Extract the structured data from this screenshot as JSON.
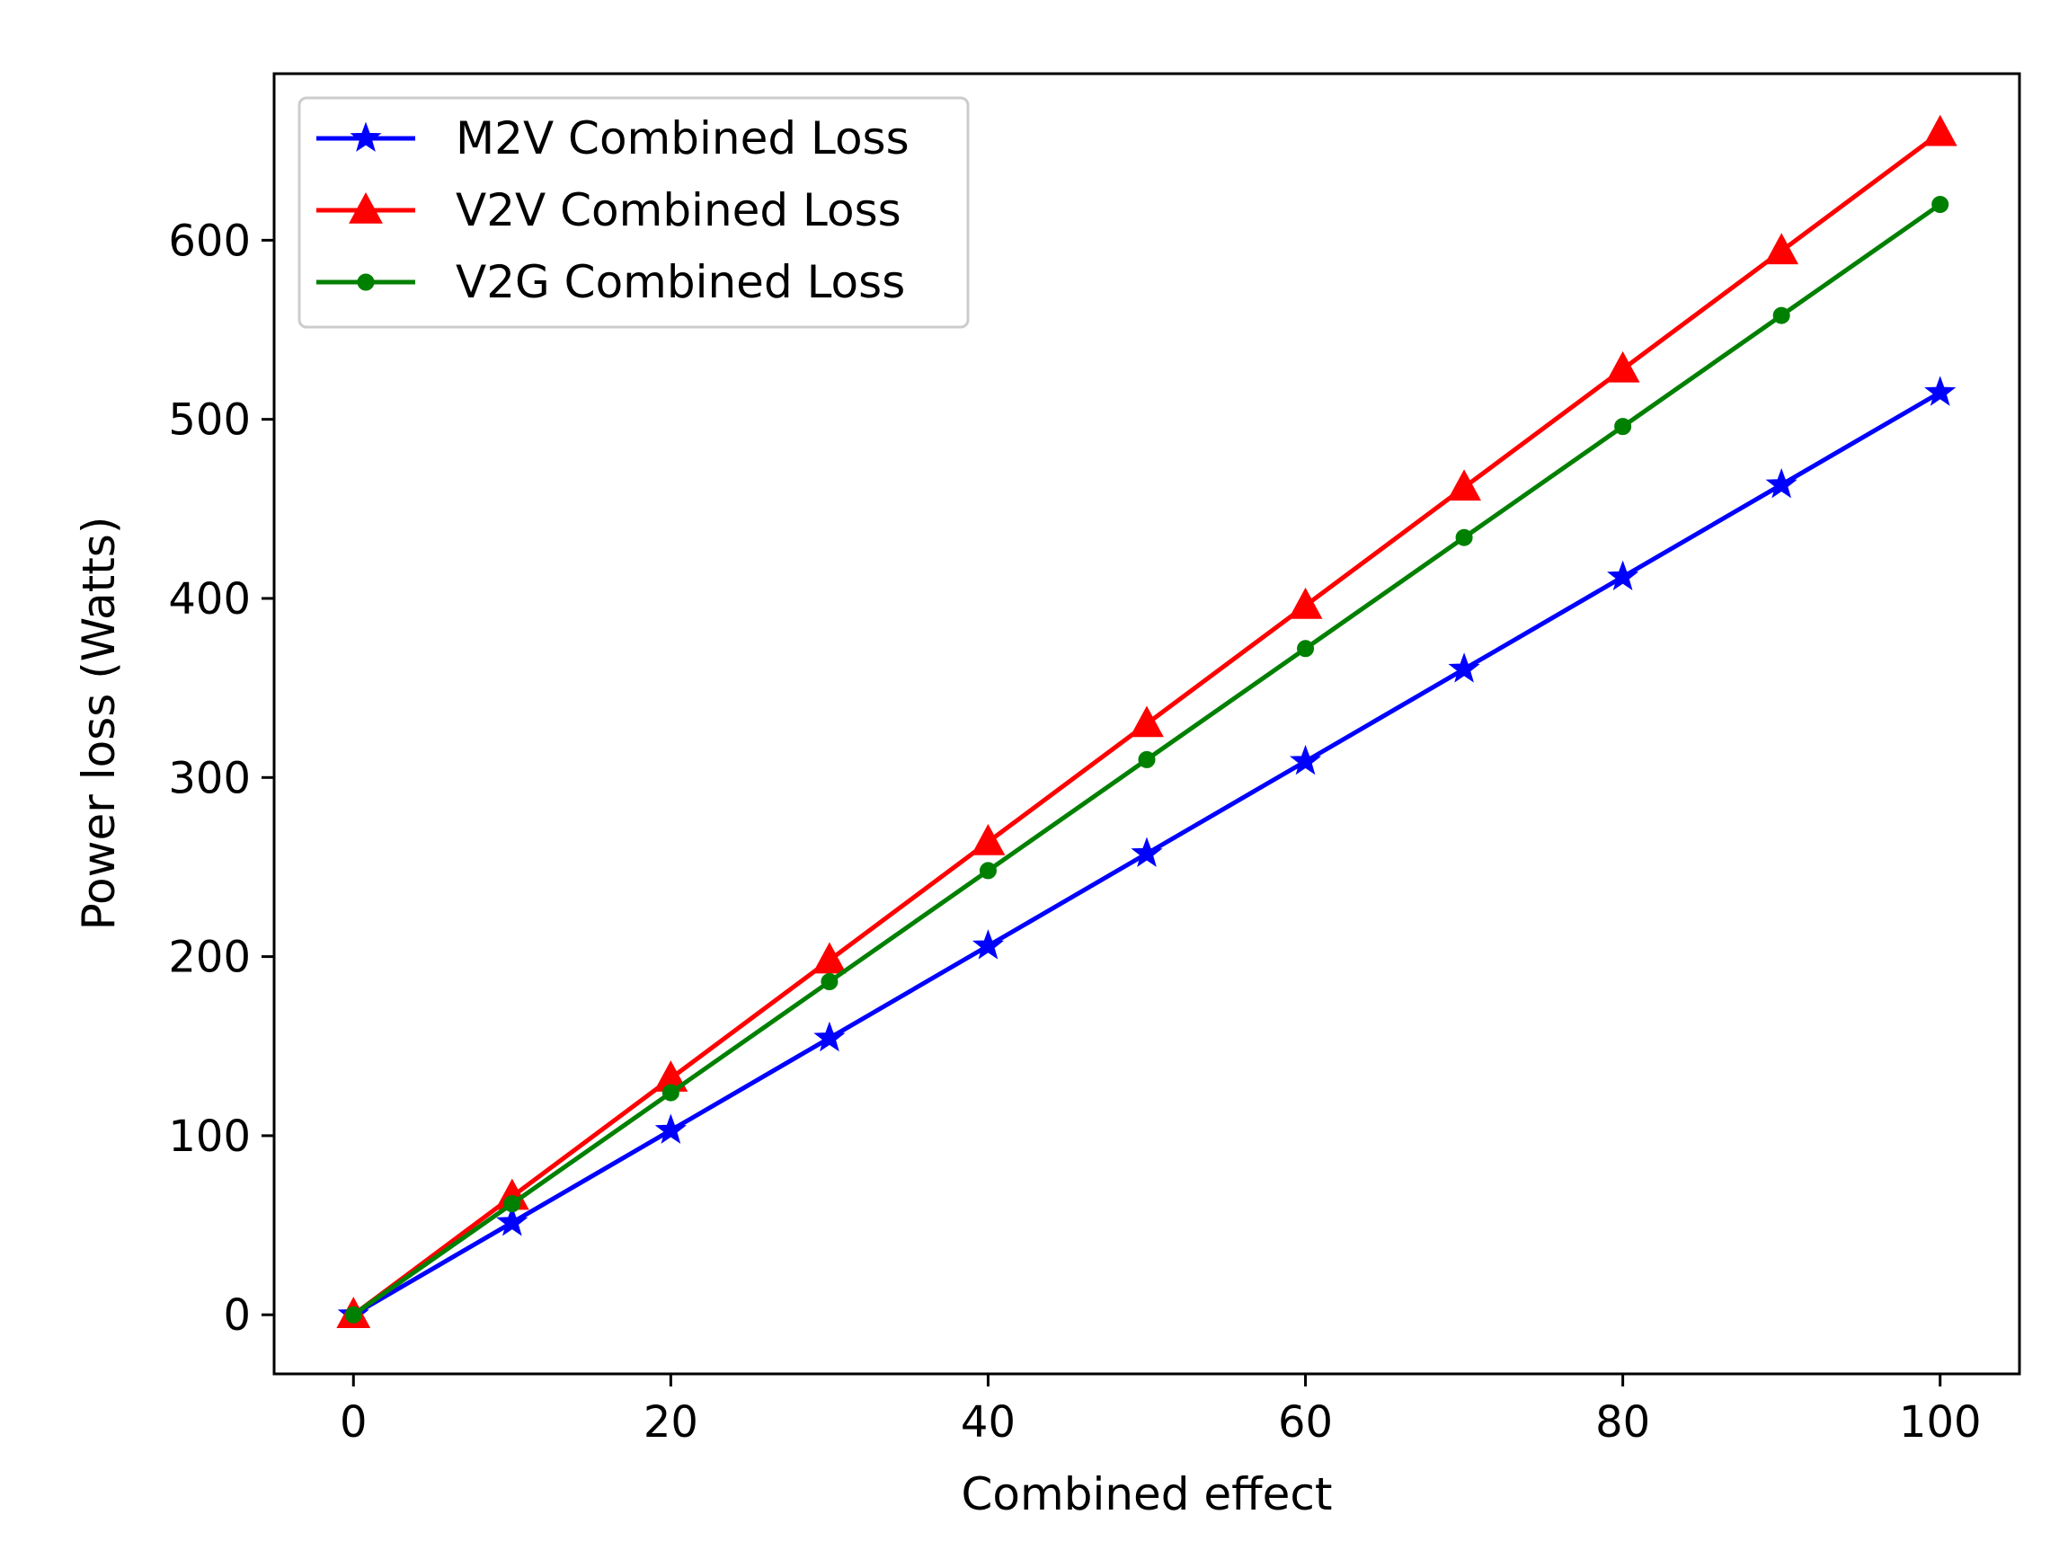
{
  "chart_data": {
    "type": "line",
    "title": "",
    "xlabel": "Combined effect",
    "ylabel": "Power loss (Watts)",
    "x": [
      0,
      10,
      20,
      30,
      40,
      50,
      60,
      70,
      80,
      90,
      100
    ],
    "xlim": [
      -5,
      105
    ],
    "ylim": [
      -33,
      693
    ],
    "xticks": [
      0,
      20,
      40,
      60,
      80,
      100
    ],
    "xtick_labels": [
      "0",
      "20",
      "40",
      "60",
      "80",
      "100"
    ],
    "yticks": [
      0,
      100,
      200,
      300,
      400,
      500,
      600
    ],
    "ytick_labels": [
      "0",
      "100",
      "200",
      "300",
      "400",
      "500",
      "600"
    ],
    "grid": false,
    "legend_position": "top-left",
    "series": [
      {
        "name": "M2V Combined Loss",
        "color": "#0000ff",
        "marker": "star",
        "values": [
          0,
          51.5,
          103,
          154.5,
          206,
          257.5,
          309,
          360.5,
          412,
          463.5,
          515
        ]
      },
      {
        "name": "V2V Combined Loss",
        "color": "#ff0000",
        "marker": "triangle",
        "values": [
          0,
          66,
          132,
          198,
          264,
          330,
          396,
          462,
          528,
          594,
          660
        ]
      },
      {
        "name": "V2G Combined Loss",
        "color": "#008000",
        "marker": "circle",
        "values": [
          0,
          62,
          124,
          186,
          248,
          310,
          372,
          434,
          496,
          558,
          620
        ]
      }
    ]
  }
}
